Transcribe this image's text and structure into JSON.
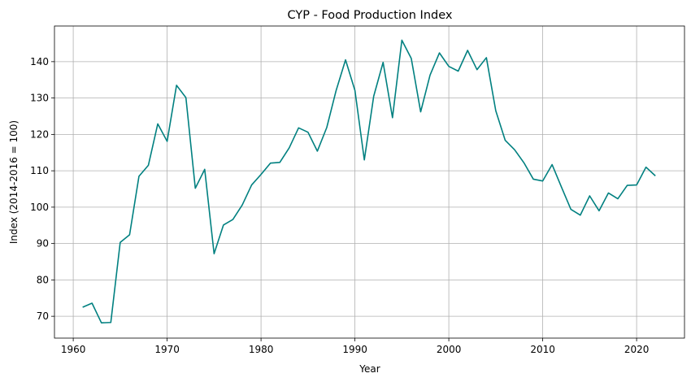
{
  "chart_data": {
    "type": "line",
    "title": "CYP - Food Production Index",
    "xlabel": "Year",
    "ylabel": "Index (2014-2016 = 100)",
    "xlim": [
      1958.0,
      2025.1
    ],
    "ylim": [
      64.0,
      149.8
    ],
    "xticks": [
      1960,
      1970,
      1980,
      1990,
      2000,
      2010,
      2020
    ],
    "yticks": [
      70,
      80,
      90,
      100,
      110,
      120,
      130,
      140
    ],
    "grid": true,
    "colors": {
      "line": "#008080"
    },
    "series": [
      {
        "x": [
          1961,
          1962,
          1963,
          1964,
          1965,
          1966,
          1967,
          1968,
          1969,
          1970,
          1971,
          1972,
          1973,
          1974,
          1975,
          1976,
          1977,
          1978,
          1979,
          1980,
          1981,
          1982,
          1983,
          1984,
          1985,
          1986,
          1987,
          1988,
          1989,
          1990,
          1991,
          1992,
          1993,
          1994,
          1995,
          1996,
          1997,
          1998,
          1999,
          2000,
          2001,
          2002,
          2003,
          2004,
          2005,
          2006,
          2007,
          2008,
          2009,
          2010,
          2011,
          2012,
          2013,
          2014,
          2015,
          2016,
          2017,
          2018,
          2019,
          2020,
          2021,
          2022
        ],
        "values": [
          72.5,
          73.6,
          68.2,
          68.3,
          90.3,
          92.4,
          108.5,
          111.5,
          122.9,
          118.1,
          133.5,
          130.1,
          105.2,
          110.4,
          87.2,
          95.1,
          96.6,
          100.6,
          106.1,
          109.0,
          112.1,
          112.3,
          116.3,
          121.8,
          120.6,
          115.4,
          121.9,
          132.1,
          140.5,
          132.1,
          113.0,
          130.5,
          139.8,
          124.6,
          145.9,
          140.9,
          126.2,
          136.3,
          142.4,
          138.7,
          137.4,
          143.1,
          137.8,
          141.1,
          126.5,
          118.4,
          115.8,
          112.2,
          107.7,
          107.2,
          111.7,
          105.5,
          99.4,
          97.8,
          103.1,
          99.0,
          103.9,
          102.3,
          106.0,
          106.1,
          111.0,
          108.6
        ]
      }
    ]
  }
}
